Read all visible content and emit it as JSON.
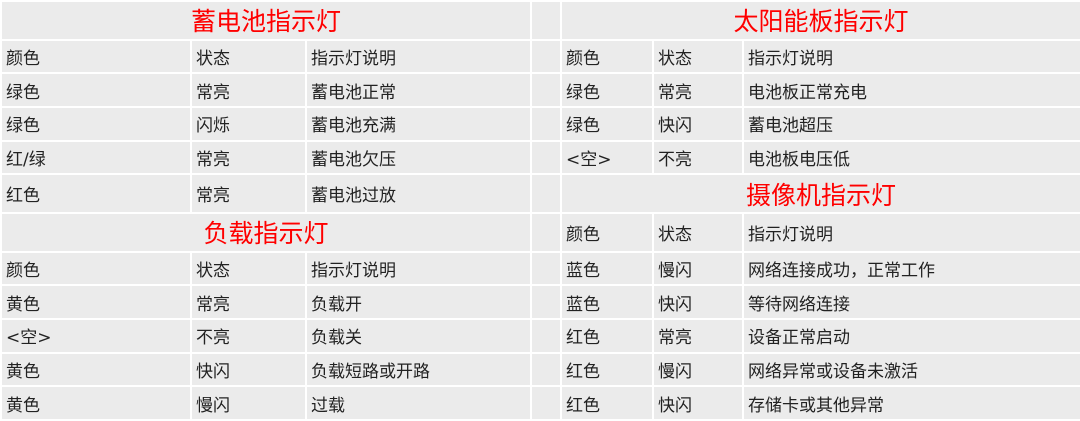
{
  "battery": {
    "title": "蓄电池指示灯",
    "header": [
      "颜色",
      "状态",
      "指示灯说明"
    ],
    "rows": [
      [
        "绿色",
        "常亮",
        "蓄电池正常"
      ],
      [
        "绿色",
        "闪烁",
        "蓄电池充满"
      ],
      [
        "红/绿",
        "常亮",
        "蓄电池欠压"
      ],
      [
        "红色",
        "常亮",
        "蓄电池过放"
      ]
    ]
  },
  "load": {
    "title": "负载指示灯",
    "header": [
      "颜色",
      "状态",
      "指示灯说明"
    ],
    "rows": [
      [
        "黄色",
        "常亮",
        "负载开"
      ],
      [
        "<空>",
        "不亮",
        "负载关"
      ],
      [
        "黄色",
        "快闪",
        "负载短路或开路"
      ],
      [
        "黄色",
        "慢闪",
        "过载"
      ]
    ]
  },
  "solar": {
    "title": "太阳能板指示灯",
    "header": [
      "颜色",
      "状态",
      "指示灯说明"
    ],
    "rows": [
      [
        "绿色",
        "常亮",
        "电池板正常充电"
      ],
      [
        "绿色",
        "快闪",
        "蓄电池超压"
      ],
      [
        "<空>",
        "不亮",
        "电池板电压低"
      ]
    ]
  },
  "camera": {
    "title": "摄像机指示灯",
    "header": [
      "颜色",
      "状态",
      "指示灯说明"
    ],
    "rows": [
      [
        "蓝色",
        "慢闪",
        "网络连接成功，正常工作"
      ],
      [
        "蓝色",
        "快闪",
        "等待网络连接"
      ],
      [
        "红色",
        "常亮",
        "设备正常启动"
      ],
      [
        "红色",
        "慢闪",
        "网络异常或设备未激活"
      ],
      [
        "红色",
        "快闪",
        "存储卡或其他异常"
      ]
    ]
  },
  "colors": {
    "title": "#ff0000",
    "cell_bg": "#ebebeb",
    "border": "#ffffff",
    "text": "#222222"
  }
}
